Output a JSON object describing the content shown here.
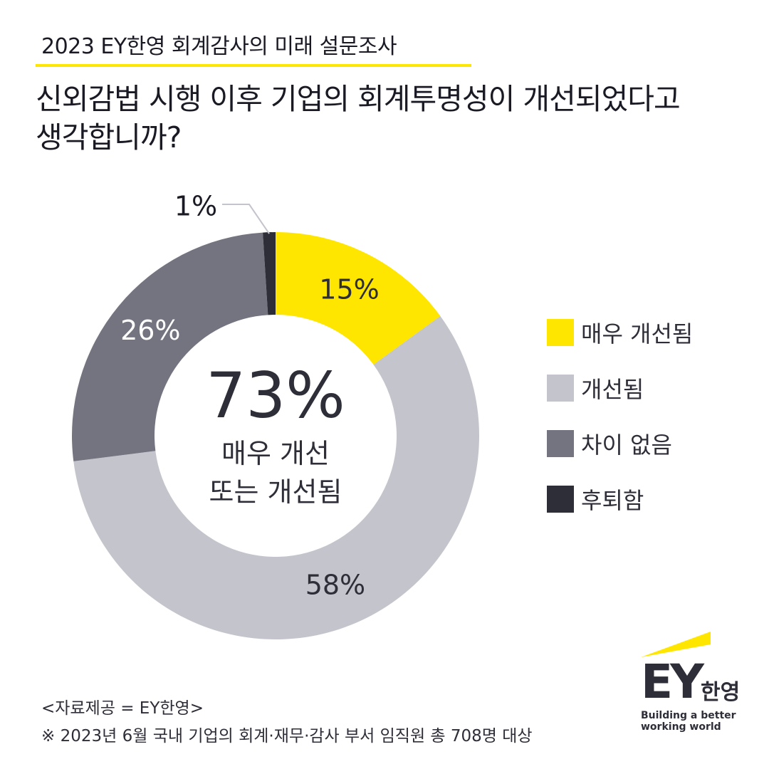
{
  "header": {
    "title": "2023 EY한영 회계감사의 미래 설문조사"
  },
  "question": {
    "line1": "신외감법 시행 이후 기업의 회계투명성이 개선되었다고",
    "line2": "생각합니까?"
  },
  "center": {
    "value": "73%",
    "line1": "매우 개선",
    "line2": "또는 개선됨"
  },
  "chart_data": {
    "type": "pie",
    "categories": [
      "매우 개선됨",
      "개선됨",
      "차이 없음",
      "후퇴함"
    ],
    "values": [
      15,
      58,
      26,
      1
    ],
    "data_labels": [
      "15%",
      "58%",
      "26%",
      "1%"
    ],
    "colors": [
      "#ffe600",
      "#c4c4cd",
      "#747480",
      "#2e2e38"
    ],
    "label_colors": [
      "#2e2e38",
      "#2e2e38",
      "#ffffff",
      "#1a1a24"
    ],
    "donut": true,
    "legend_position": "right"
  },
  "legend": {
    "items": [
      {
        "label": "매우 개선됨",
        "color": "#ffe600"
      },
      {
        "label": "개선됨",
        "color": "#c4c4cd"
      },
      {
        "label": "차이 없음",
        "color": "#747480"
      },
      {
        "label": "후퇴함",
        "color": "#2e2e38"
      }
    ]
  },
  "footer": {
    "source": "<자료제공 = EY한영>",
    "note": "※ 2023년 6월 국내 기업의 회계·재무·감사 부서 임직원 총 708명 대상"
  },
  "logo": {
    "mark": "EY",
    "ko": "한영",
    "tag1": "Building a better",
    "tag2": "working world",
    "accent": "#ffe600"
  }
}
